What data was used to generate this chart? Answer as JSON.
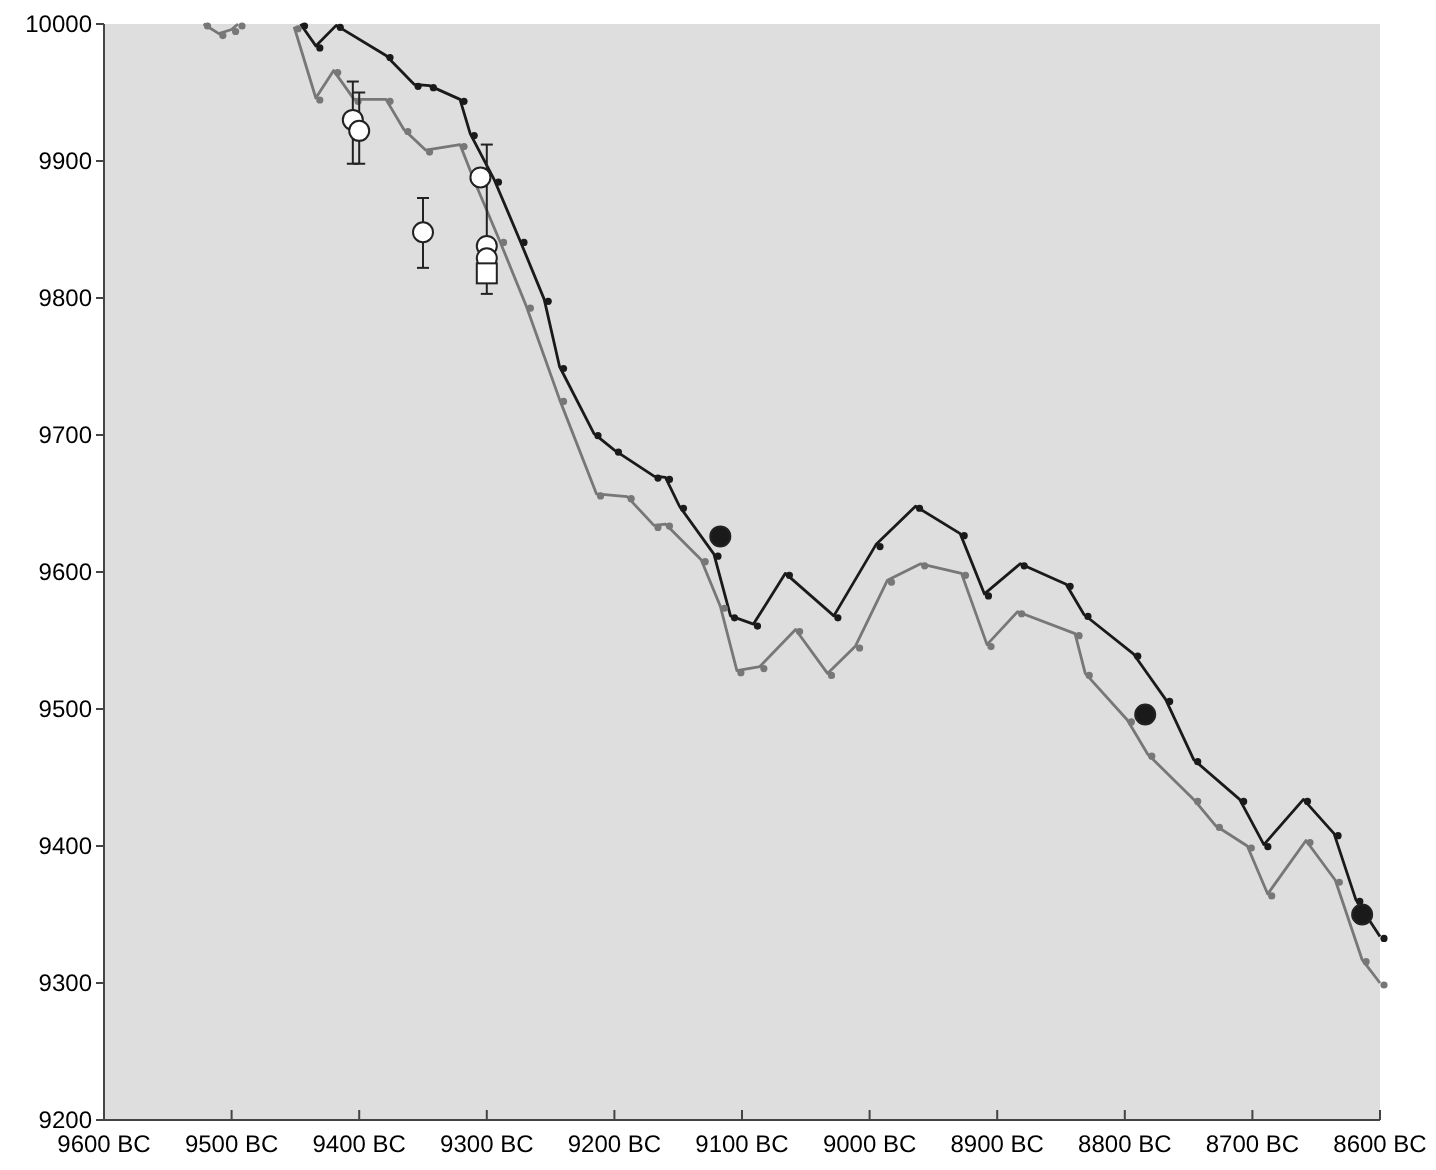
{
  "chart_data": {
    "type": "line",
    "xlim": [
      -9600,
      -8600
    ],
    "ylim": [
      9200,
      10000
    ],
    "xticks": [
      {
        "value": -9600,
        "label": "9600 BC"
      },
      {
        "value": -9500,
        "label": "9500 BC"
      },
      {
        "value": -9400,
        "label": "9400 BC"
      },
      {
        "value": -9300,
        "label": "9300 BC"
      },
      {
        "value": -9200,
        "label": "9200 BC"
      },
      {
        "value": -9100,
        "label": "9100 BC"
      },
      {
        "value": -9000,
        "label": "9000 BC"
      },
      {
        "value": -8900,
        "label": "8900 BC"
      },
      {
        "value": -8800,
        "label": "8800 BC"
      },
      {
        "value": -8700,
        "label": "8700 BC"
      },
      {
        "value": -8600,
        "label": "8600 BC"
      }
    ],
    "yticks": [
      9200,
      9300,
      9400,
      9500,
      9600,
      9700,
      9800,
      9900,
      10000
    ],
    "grid": false,
    "series": [
      {
        "color": "#1a1a1a",
        "marker": "circle",
        "line_style": "solid",
        "x": [
          -9446,
          -9434,
          -9418,
          -9379,
          -9357,
          -9345,
          -9321,
          -9313,
          -9294,
          -9274,
          -9255,
          -9243,
          -9216,
          -9200,
          -9169,
          -9160,
          -9149,
          -9122,
          -9109,
          -9091,
          -9066,
          -9028,
          -8995,
          -8964,
          -8929,
          -8910,
          -8882,
          -8846,
          -8832,
          -8793,
          -8768,
          -8746,
          -8710,
          -8691,
          -8660,
          -8636,
          -8619,
          -8600
        ],
        "values": [
          10000,
          9984,
          9999,
          9977,
          9956,
          9955,
          9945,
          9920,
          9886,
          9842,
          9799,
          9750,
          9701,
          9689,
          9670,
          9669,
          9648,
          9613,
          9568,
          9562,
          9599,
          9568,
          9620,
          9648,
          9628,
          9584,
          9606,
          9591,
          9569,
          9540,
          9507,
          9463,
          9434,
          9401,
          9434,
          9409,
          9361,
          9334
        ]
      },
      {
        "color": "#777777",
        "marker": "circle",
        "line_style": "solid",
        "x": [
          -9522,
          -9510,
          -9500,
          -9495,
          -9470,
          -9451,
          -9434,
          -9420,
          -9404,
          -9379,
          -9365,
          -9348,
          -9321,
          -9310,
          -9290,
          -9269,
          -9243,
          -9214,
          -9190,
          -9169,
          -9160,
          -9132,
          -9117,
          -9104,
          -9086,
          -9058,
          -9033,
          -9011,
          -8986,
          -8960,
          -8928,
          -8908,
          -8884,
          -8839,
          -8831,
          -8798,
          -8782,
          -8746,
          -8729,
          -8704,
          -8688,
          -8658,
          -8635,
          -8614,
          -8600
        ],
        "values": [
          10000,
          9993,
          9996,
          10000,
          null,
          9998,
          9946,
          9966,
          9945,
          9945,
          9923,
          9908,
          9912,
          9886,
          9842,
          9794,
          9726,
          9657,
          9655,
          9634,
          9635,
          9609,
          9575,
          9528,
          9531,
          9558,
          9526,
          9546,
          9594,
          9606,
          9599,
          9547,
          9571,
          9555,
          9526,
          9492,
          9467,
          9434,
          9415,
          9400,
          9365,
          9404,
          9375,
          9317,
          9300
        ]
      },
      {
        "type": "scatter",
        "color": "#ffffff",
        "marker": "circle",
        "x": [
          -9405,
          -9400,
          -9350,
          -9305,
          -9300,
          -9300
        ],
        "values": [
          9930,
          9922,
          9848,
          9888,
          9838,
          9829
        ],
        "errors": [
          [
            9898,
            9958
          ],
          [
            9898,
            9950
          ],
          [
            9822,
            9873
          ],
          null,
          [
            9803,
            9912
          ],
          null
        ]
      },
      {
        "type": "scatter",
        "color": "#ffffff",
        "marker": "square",
        "x": [
          -9300
        ],
        "values": [
          9818
        ]
      },
      {
        "type": "scatter",
        "color": "#1a1a1a",
        "marker": "circle",
        "x": [
          -9117,
          -8784,
          -8614
        ],
        "values": [
          9626,
          9496,
          9350
        ]
      }
    ]
  }
}
